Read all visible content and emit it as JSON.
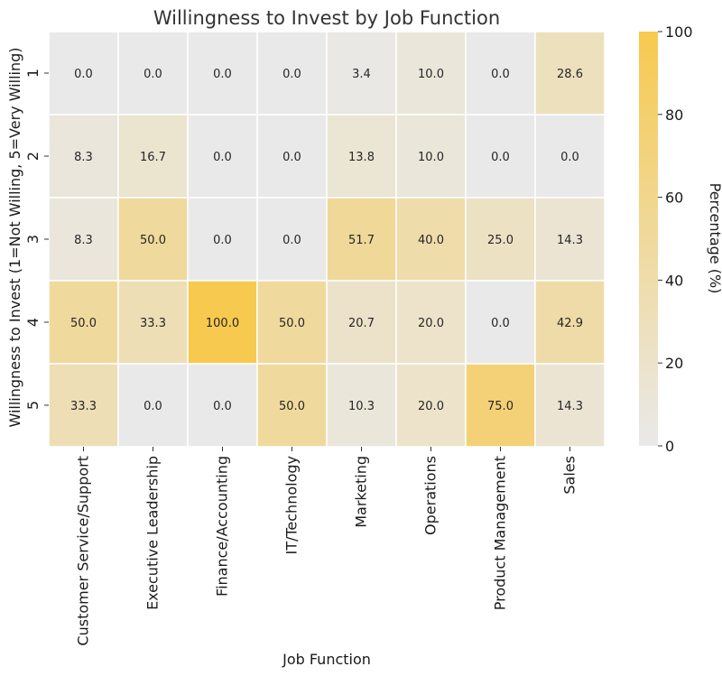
{
  "chart_data": {
    "type": "heatmap",
    "title": "Willingness to Invest by Job Function",
    "xlabel": "Job Function",
    "ylabel": "Willingness to Invest (1=Not Willing, 5=Very Willing)",
    "x_categories": [
      "Customer Service/Support",
      "Executive Leadership",
      "Finance/Accounting",
      "IT/Technology",
      "Marketing",
      "Operations",
      "Product Management",
      "Sales"
    ],
    "y_categories": [
      "1",
      "2",
      "3",
      "4",
      "5"
    ],
    "values": [
      [
        0.0,
        0.0,
        0.0,
        0.0,
        3.4,
        10.0,
        0.0,
        28.6
      ],
      [
        8.3,
        16.7,
        0.0,
        0.0,
        13.8,
        10.0,
        0.0,
        0.0
      ],
      [
        8.3,
        50.0,
        0.0,
        0.0,
        51.7,
        40.0,
        25.0,
        14.3
      ],
      [
        50.0,
        33.3,
        100.0,
        50.0,
        20.7,
        20.0,
        0.0,
        42.9
      ],
      [
        33.3,
        0.0,
        0.0,
        50.0,
        10.3,
        20.0,
        75.0,
        14.3
      ]
    ],
    "value_format": "0.0",
    "colorbar": {
      "label": "Percentage (%)",
      "range": [
        0,
        100
      ],
      "ticks": [
        "0",
        "20",
        "40",
        "60",
        "80",
        "100"
      ],
      "low_color": "#e9e9e9",
      "high_color": "#f7c94f"
    },
    "grid_color": "#ffffff",
    "legend_placement": "right"
  }
}
